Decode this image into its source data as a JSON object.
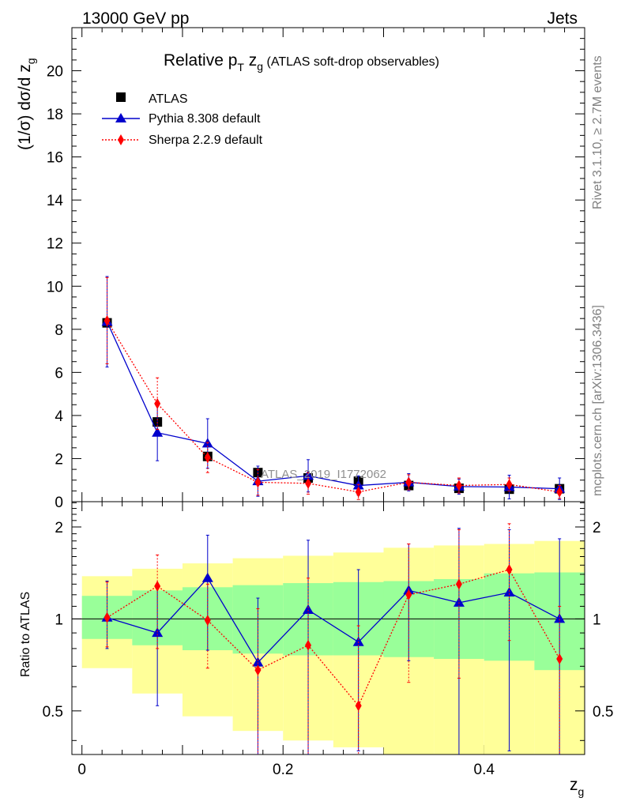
{
  "header": {
    "energy_label": "13000 GeV pp",
    "process_label": "Jets"
  },
  "side": {
    "rivet": "Rivet 3.1.10, ≥ 2.7M events",
    "site": "mcplots.cern.ch [arXiv:1306.3436]"
  },
  "chart_data": {
    "type": "line",
    "title": "Relative p_T z_g (ATLAS soft-drop observables)",
    "title_parts": {
      "main": "Relative p",
      "sub_t": "T",
      "z": " z",
      "sub_g": "g",
      "rest": " (ATLAS soft-drop observables)"
    },
    "watermark": "ATLAS_2019_I1772062",
    "xlabel": "z",
    "xlabel_sub": "g",
    "ylabel": "(1/σ) dσ/d z",
    "ylabel_sub": "g",
    "ratio_ylabel": "Ratio to ATLAS",
    "xlim": [
      -0.01,
      0.5
    ],
    "ylim": [
      0,
      22
    ],
    "ratio_ylim": [
      0.36,
      2.42
    ],
    "x_ticks": [
      0,
      0.2,
      0.4
    ],
    "x_tick_labels": [
      "0",
      "0.2",
      "0.4"
    ],
    "y_ticks": [
      0,
      2,
      4,
      6,
      8,
      10,
      12,
      14,
      16,
      18,
      20
    ],
    "y_tick_labels": [
      "0",
      "2",
      "4",
      "6",
      "8",
      "10",
      "12",
      "14",
      "16",
      "18",
      "20"
    ],
    "ratio_ticks": [
      0.5,
      1,
      2
    ],
    "ratio_tick_labels": [
      "0.5",
      "1",
      "2"
    ],
    "x": [
      0.025,
      0.075,
      0.125,
      0.175,
      0.225,
      0.275,
      0.325,
      0.375,
      0.425,
      0.475
    ],
    "bin_edges": [
      0,
      0.05,
      0.1,
      0.15,
      0.2,
      0.25,
      0.3,
      0.35,
      0.4,
      0.45,
      0.5
    ],
    "series": [
      {
        "name": "ATLAS",
        "color": "#000000",
        "marker": "square",
        "values": [
          8.3,
          3.7,
          2.1,
          1.35,
          1.1,
          0.95,
          0.75,
          0.62,
          0.58,
          0.6
        ],
        "band_inner": [
          [
            0.86,
            1.19
          ],
          [
            0.82,
            1.24
          ],
          [
            0.79,
            1.27
          ],
          [
            0.77,
            1.29
          ],
          [
            0.76,
            1.31
          ],
          [
            0.76,
            1.32
          ],
          [
            0.75,
            1.33
          ],
          [
            0.74,
            1.35
          ],
          [
            0.73,
            1.41
          ],
          [
            0.68,
            1.42
          ]
        ],
        "band_outer": [
          [
            0.69,
            1.38
          ],
          [
            0.57,
            1.46
          ],
          [
            0.48,
            1.52
          ],
          [
            0.43,
            1.58
          ],
          [
            0.4,
            1.61
          ],
          [
            0.38,
            1.65
          ],
          [
            0.36,
            1.71
          ],
          [
            0.35,
            1.74
          ],
          [
            0.34,
            1.76
          ],
          [
            0.33,
            1.8
          ]
        ]
      },
      {
        "name": "Pythia 8.308 default",
        "color": "#0000cc",
        "marker": "triangle",
        "line": "solid",
        "values": [
          8.35,
          3.2,
          2.7,
          0.95,
          1.2,
          0.75,
          0.9,
          0.7,
          0.68,
          0.6
        ],
        "errors": [
          2.1,
          1.3,
          1.15,
          0.7,
          0.75,
          0.45,
          0.4,
          0.35,
          0.55,
          0.5
        ],
        "ratio": [
          1.01,
          0.9,
          1.36,
          0.72,
          1.07,
          0.84,
          1.24,
          1.13,
          1.22,
          1.0
        ],
        "ratio_err": [
          [
            0.8,
            1.33
          ],
          [
            0.52,
            1.29
          ],
          [
            0.79,
            1.88
          ],
          [
            0.3,
            1.17
          ],
          [
            0.2,
            1.81
          ],
          [
            0.37,
            1.45
          ],
          [
            0.73,
            1.76
          ],
          [
            0.3,
            1.98
          ],
          [
            0.37,
            1.96
          ],
          [
            0.3,
            1.83
          ]
        ]
      },
      {
        "name": "Sherpa 2.2.9 default",
        "color": "#ff0000",
        "marker": "diamond",
        "line": "dotted",
        "values": [
          8.4,
          4.55,
          2.05,
          0.9,
          0.85,
          0.45,
          0.9,
          0.75,
          0.8,
          0.45
        ],
        "errors": [
          2.0,
          1.2,
          0.7,
          0.6,
          0.5,
          0.35,
          0.35,
          0.35,
          0.3,
          0.3
        ],
        "ratio": [
          1.01,
          1.28,
          0.99,
          0.68,
          0.82,
          0.52,
          1.2,
          1.3,
          1.45,
          0.74
        ],
        "ratio_err": [
          [
            0.81,
            1.32
          ],
          [
            0.8,
            1.62
          ],
          [
            0.69,
            1.3
          ],
          [
            0.28,
            1.08
          ],
          [
            0.27,
            1.36
          ],
          [
            0.1,
            0.95
          ],
          [
            0.62,
            1.76
          ],
          [
            0.64,
            1.96
          ],
          [
            0.85,
            2.05
          ],
          [
            0.2,
            1.1
          ]
        ]
      }
    ],
    "legend_position": "top-left"
  }
}
